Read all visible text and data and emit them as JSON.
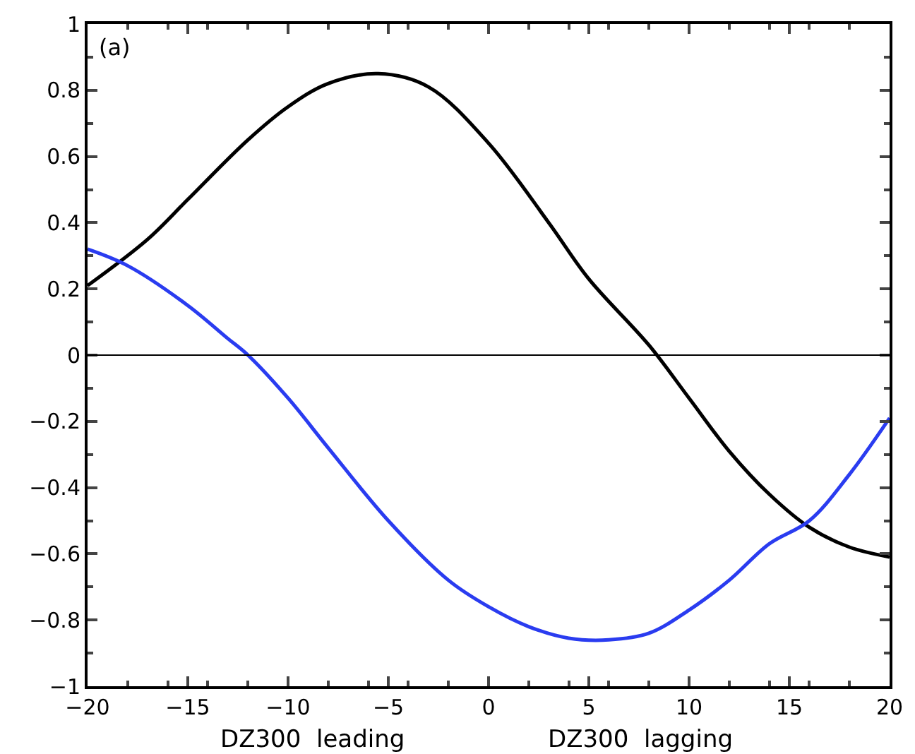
{
  "chart_data": {
    "type": "line",
    "xlim": [
      -20,
      20
    ],
    "ylim": [
      -1,
      1
    ],
    "xticks": [
      {
        "value": -20,
        "label": "−20"
      },
      {
        "value": -15,
        "label": "−15"
      },
      {
        "value": -10,
        "label": "−10"
      },
      {
        "value": -5,
        "label": "−5"
      },
      0,
      5,
      10,
      15,
      20
    ],
    "yticks": [
      {
        "value": -1,
        "label": "−1"
      },
      {
        "value": -0.8,
        "label": "−0.8"
      },
      {
        "value": -0.6,
        "label": "−0.6"
      },
      {
        "value": -0.4,
        "label": "−0.4"
      },
      {
        "value": -0.2,
        "label": "−0.2"
      },
      0,
      0.2,
      0.4,
      0.6,
      0.8,
      1
    ],
    "marker": "none",
    "line_style": "solid",
    "ref_lines": [
      {
        "axis": "y",
        "value": 0,
        "color": "#000000"
      }
    ],
    "annotations": [
      "(a)",
      "DZ300  leading",
      "DZ300  lagging"
    ],
    "series": [
      {
        "color": "#000000",
        "x": [
          -20,
          -17,
          -15,
          -12,
          -10,
          -8,
          -5.5,
          -3,
          0,
          3,
          5,
          8,
          10,
          12,
          14,
          16,
          18,
          20
        ],
        "values": [
          0.21,
          0.35,
          0.47,
          0.65,
          0.75,
          0.82,
          0.85,
          0.81,
          0.64,
          0.4,
          0.23,
          0.03,
          -0.13,
          -0.29,
          -0.42,
          -0.52,
          -0.58,
          -0.61
        ]
      },
      {
        "color": "#2a3cf0",
        "x": [
          -20,
          -18,
          -15,
          -13,
          -12,
          -10,
          -8,
          -5,
          -2,
          0,
          2,
          4,
          6,
          8,
          10,
          12,
          14,
          16,
          18,
          20
        ],
        "values": [
          0.32,
          0.27,
          0.15,
          0.05,
          0.0,
          -0.13,
          -0.28,
          -0.5,
          -0.68,
          -0.76,
          -0.82,
          -0.855,
          -0.86,
          -0.84,
          -0.77,
          -0.68,
          -0.57,
          -0.5,
          -0.36,
          -0.19
        ]
      }
    ]
  }
}
